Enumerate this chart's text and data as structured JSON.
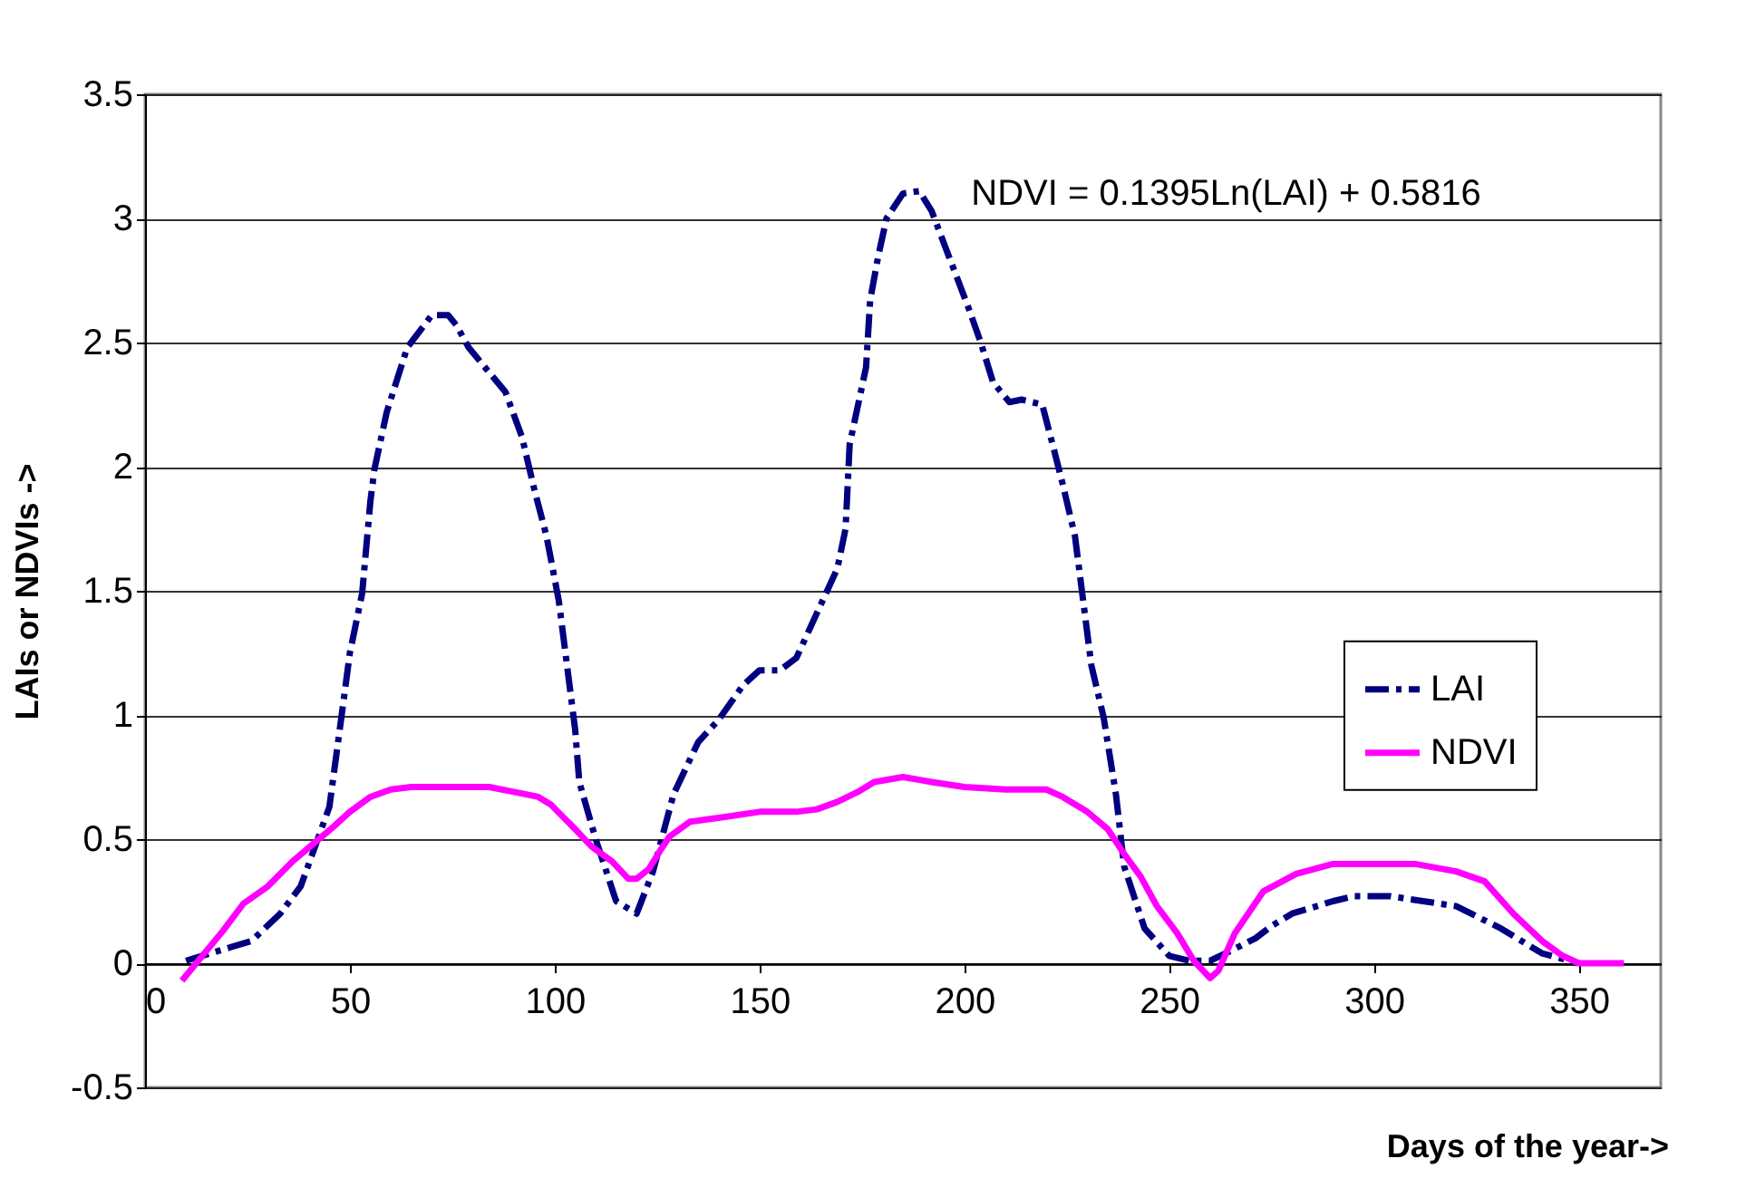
{
  "chart_data": {
    "type": "line",
    "xlabel": "Days of the year->",
    "ylabel": "LAIs or NDVIs ->",
    "annotations": [
      "NDVI = 0.1395Ln(LAI) + 0.5816"
    ],
    "xlim": [
      0,
      370
    ],
    "xticks": [
      0,
      50,
      100,
      150,
      200,
      250,
      300,
      350
    ],
    "ylim": [
      -0.5,
      3.5
    ],
    "yticks": [
      -0.5,
      0,
      0.5,
      1,
      1.5,
      2,
      2.5,
      3,
      3.5
    ],
    "grid": "y",
    "legend": "right",
    "marker": "none",
    "series": [
      {
        "name": "LAI",
        "color": "#000080",
        "line_style": "dashed",
        "x": [
          10,
          26,
          33,
          38,
          45,
          48,
          50,
          53,
          55,
          56,
          59,
          64,
          70,
          74,
          76,
          79,
          83,
          88,
          92,
          95,
          98,
          101,
          103,
          105,
          106,
          110,
          115,
          120,
          124,
          129,
          135,
          140,
          146,
          150,
          155,
          159,
          164,
          169,
          171,
          172,
          176,
          177,
          179,
          181,
          185,
          189,
          192,
          195,
          198,
          201,
          204,
          207,
          211,
          214,
          219,
          222,
          224,
          227,
          229,
          231,
          234,
          237,
          239,
          242,
          244,
          250,
          255,
          260,
          265,
          271,
          275,
          280,
          290,
          295,
          304,
          312,
          320,
          331,
          341,
          350
        ],
        "values": [
          0.01,
          0.09,
          0.2,
          0.31,
          0.63,
          1.0,
          1.25,
          1.49,
          1.86,
          1.99,
          2.22,
          2.48,
          2.61,
          2.61,
          2.57,
          2.48,
          2.4,
          2.3,
          2.12,
          1.91,
          1.72,
          1.46,
          1.2,
          0.94,
          0.73,
          0.5,
          0.25,
          0.2,
          0.37,
          0.68,
          0.89,
          0.98,
          1.12,
          1.18,
          1.18,
          1.23,
          1.41,
          1.59,
          1.75,
          2.09,
          2.4,
          2.67,
          2.85,
          3.0,
          3.1,
          3.11,
          3.03,
          2.9,
          2.77,
          2.64,
          2.5,
          2.34,
          2.26,
          2.27,
          2.25,
          2.06,
          1.93,
          1.72,
          1.46,
          1.2,
          0.99,
          0.68,
          0.39,
          0.24,
          0.14,
          0.03,
          0.01,
          0.01,
          0.05,
          0.1,
          0.15,
          0.2,
          0.25,
          0.27,
          0.27,
          0.25,
          0.23,
          0.14,
          0.04,
          0
        ]
      },
      {
        "name": "NDVI",
        "color": "#ff00ff",
        "line_style": "solid",
        "x": [
          9,
          14,
          19,
          24,
          30,
          36,
          41,
          46,
          50,
          55,
          60,
          65,
          84,
          90,
          96,
          99,
          102,
          105,
          109,
          114,
          118,
          120,
          123,
          126,
          128,
          133,
          142,
          150,
          159,
          164,
          169,
          174,
          178,
          185,
          192,
          200,
          210,
          220,
          224,
          230,
          235,
          239,
          243,
          247,
          252,
          256,
          260,
          262,
          266,
          273,
          281,
          290,
          310,
          320,
          327,
          334,
          341,
          346,
          350,
          361
        ],
        "values": [
          -0.07,
          0.03,
          0.13,
          0.24,
          0.31,
          0.41,
          0.48,
          0.55,
          0.61,
          0.67,
          0.7,
          0.71,
          0.71,
          0.69,
          0.67,
          0.64,
          0.59,
          0.54,
          0.47,
          0.41,
          0.34,
          0.34,
          0.38,
          0.46,
          0.51,
          0.57,
          0.59,
          0.61,
          0.61,
          0.62,
          0.65,
          0.69,
          0.73,
          0.75,
          0.73,
          0.71,
          0.7,
          0.7,
          0.67,
          0.61,
          0.54,
          0.44,
          0.35,
          0.23,
          0.12,
          0.01,
          -0.06,
          -0.03,
          0.12,
          0.29,
          0.36,
          0.4,
          0.4,
          0.37,
          0.33,
          0.2,
          0.09,
          0.03,
          0,
          0
        ]
      }
    ]
  }
}
